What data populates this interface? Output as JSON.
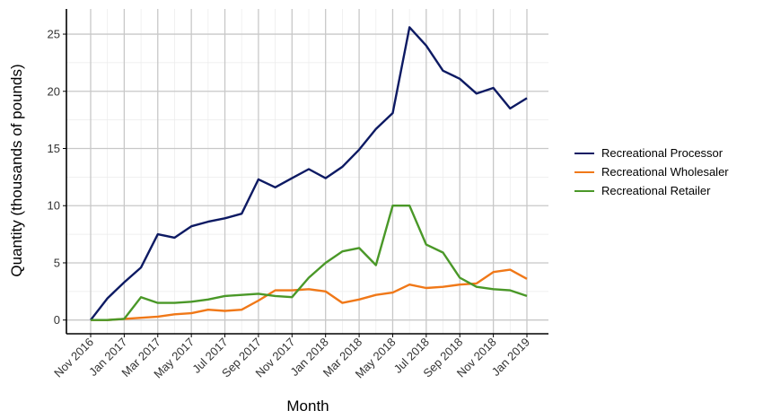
{
  "chart_data": {
    "type": "line",
    "xlabel": "Month",
    "ylabel": "Quantity (thousands of pounds)",
    "ylim": [
      -1.2,
      27.2
    ],
    "grid": true,
    "legend_position": "right",
    "x": [
      "Nov 2016",
      "Dec 2016",
      "Jan 2017",
      "Feb 2017",
      "Mar 2017",
      "Apr 2017",
      "May 2017",
      "Jun 2017",
      "Jul 2017",
      "Aug 2017",
      "Sep 2017",
      "Oct 2017",
      "Nov 2017",
      "Dec 2017",
      "Jan 2018",
      "Feb 2018",
      "Mar 2018",
      "Apr 2018",
      "May 2018",
      "Jun 2018",
      "Jul 2018",
      "Aug 2018",
      "Sep 2018",
      "Oct 2018",
      "Nov 2018",
      "Dec 2018",
      "Jan 2019"
    ],
    "x_tick_labels": [
      "Nov 2016",
      "Jan 2017",
      "Mar 2017",
      "May 2017",
      "Jul 2017",
      "Sep 2017",
      "Nov 2017",
      "Jan 2018",
      "Mar 2018",
      "May 2018",
      "Jul 2018",
      "Sep 2018",
      "Nov 2018",
      "Jan 2019"
    ],
    "y_ticks": [
      0,
      5,
      10,
      15,
      20,
      25
    ],
    "series": [
      {
        "name": "Recreational Processor",
        "color": "#0d1a63",
        "values": [
          0.0,
          1.9,
          3.3,
          4.6,
          7.5,
          7.2,
          8.2,
          8.6,
          8.9,
          9.3,
          12.3,
          11.6,
          12.4,
          13.2,
          12.4,
          13.4,
          14.9,
          16.7,
          18.1,
          25.6,
          24.0,
          21.8,
          21.1,
          19.8,
          20.3,
          18.5,
          19.4
        ]
      },
      {
        "name": "Recreational Wholesaler",
        "color": "#f07818",
        "values": [
          0.0,
          0.0,
          0.1,
          0.2,
          0.3,
          0.5,
          0.6,
          0.9,
          0.8,
          0.9,
          1.7,
          2.6,
          2.6,
          2.7,
          2.5,
          1.5,
          1.8,
          2.2,
          2.4,
          3.1,
          2.8,
          2.9,
          3.1,
          3.2,
          4.2,
          4.4,
          3.6
        ]
      },
      {
        "name": "Recreational Retailer",
        "color": "#4a9828",
        "values": [
          0.0,
          0.0,
          0.1,
          2.0,
          1.5,
          1.5,
          1.6,
          1.8,
          2.1,
          2.2,
          2.3,
          2.1,
          2.0,
          3.7,
          5.0,
          6.0,
          6.3,
          4.8,
          10.0,
          10.0,
          6.6,
          5.9,
          3.7,
          2.9,
          2.7,
          2.6,
          2.1
        ]
      }
    ]
  }
}
